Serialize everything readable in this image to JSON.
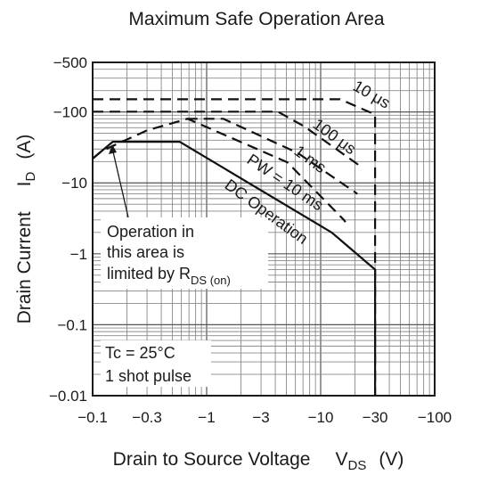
{
  "chart_data": {
    "type": "line",
    "title": "Maximum Safe Operation Area",
    "xlabel": {
      "text": "Drain to Source Voltage",
      "symbol": "V",
      "sub": "DS",
      "unit": "(V)"
    },
    "ylabel": {
      "text": "Drain Current",
      "symbol": "I",
      "sub": "D",
      "unit": "(A)"
    },
    "x_scale": "log",
    "y_scale": "log",
    "xlim": [
      -0.1,
      -100
    ],
    "ylim": [
      -0.01,
      -500
    ],
    "grid": true,
    "x_ticks": [
      "−0.1",
      "−0.3",
      "−1",
      "−3",
      "−10",
      "−30",
      "−100"
    ],
    "y_ticks": [
      "−500",
      "−100",
      "−10",
      "−1",
      "−0.1",
      "−0.01"
    ],
    "series": [
      {
        "name": "DC Operation",
        "dash": "solid",
        "x": [
          -0.1,
          -0.15,
          -0.58,
          -12.5,
          -30,
          -30
        ],
        "y": [
          -22,
          -38,
          -38,
          -2.0,
          -0.6,
          -0.01
        ]
      },
      {
        "name": "PW = 10 ms",
        "dash": "dashed",
        "x": [
          -0.1,
          -0.12,
          -0.18,
          -0.3,
          -0.68,
          -5.1,
          -16,
          -16.5
        ],
        "y": [
          -22,
          -28,
          -38,
          -55,
          -80,
          -19.5,
          -3.0,
          -2.8
        ]
      },
      {
        "name": "1 ms",
        "dash": "dashed",
        "x": [
          -0.67,
          -1.4,
          -6.3,
          -20,
          -21
        ],
        "y": [
          -80,
          -80,
          -26.4,
          -7.4,
          -7.0
        ]
      },
      {
        "name": "100 μs",
        "dash": "dashed",
        "x": [
          -0.1,
          -4.2,
          -7.2,
          -21,
          -22
        ],
        "y": [
          -101,
          -101,
          -62.5,
          -18.4,
          -16.5
        ]
      },
      {
        "name": "10 μs",
        "dash": "dashed",
        "x": [
          -0.1,
          -14.8,
          -30,
          -30
        ],
        "y": [
          -151,
          -151,
          -92,
          -0.01
        ]
      }
    ],
    "series_labels": [
      "10 μs",
      "100 μs",
      "1 ms",
      "PW = 10 ms",
      "DC Operation"
    ],
    "annotations": {
      "rds_lines": [
        "Operation in",
        "this area is",
        "limited by R"
      ],
      "rds_sub": "DS (on)",
      "conditions": [
        "Tc = 25°C",
        "1 shot pulse"
      ]
    }
  }
}
